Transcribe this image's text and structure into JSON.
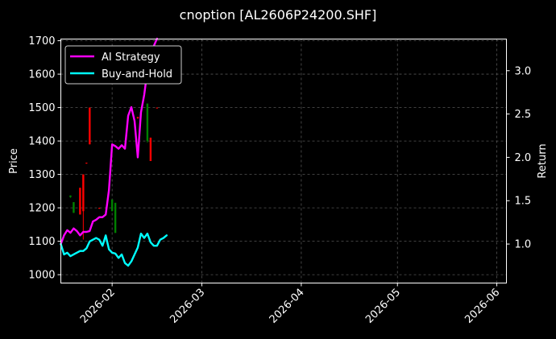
{
  "chart_data": {
    "type": "line",
    "title": "cnoption [AL2606P24200.SHF]",
    "ylabel": "Price",
    "y2label": "Return",
    "xlim": [
      "2026-01-16",
      "2026-06-04"
    ],
    "ylim": [
      975,
      1705
    ],
    "y2lim": [
      0.55,
      3.365
    ],
    "grid": true,
    "legend_position": "top-left",
    "xticks": [
      {
        "date": "2026-02-01",
        "label": "2026-02"
      },
      {
        "date": "2026-03-01",
        "label": "2026-03"
      },
      {
        "date": "2026-04-01",
        "label": "2026-04"
      },
      {
        "date": "2026-05-01",
        "label": "2026-05"
      },
      {
        "date": "2026-06-01",
        "label": "2026-06"
      }
    ],
    "yticks": [
      1000,
      1100,
      1200,
      1300,
      1400,
      1500,
      1600,
      1700
    ],
    "y2ticks": [
      1.0,
      1.5,
      2.0,
      2.5,
      3.0
    ],
    "candles": [
      {
        "date": "2026-01-19",
        "open": 1237,
        "close": 1232,
        "high": 1237,
        "low": 1230,
        "color": "#008000"
      },
      {
        "date": "2026-01-20",
        "open": 1217,
        "close": 1185,
        "high": 1217,
        "low": 1185,
        "color": "#008000"
      },
      {
        "date": "2026-01-22",
        "open": 1180,
        "close": 1260,
        "high": 1260,
        "low": 1180,
        "color": "#ff0000"
      },
      {
        "date": "2026-01-23",
        "open": 1190,
        "close": 1300,
        "high": 1300,
        "low": 1105,
        "color": "#ff0000"
      },
      {
        "date": "2026-01-24",
        "open": 1335,
        "close": 1333,
        "high": 1335,
        "low": 1332,
        "color": "#ff0000"
      },
      {
        "date": "2026-01-25",
        "open": 1390,
        "close": 1500,
        "high": 1500,
        "low": 1390,
        "color": "#ff0000"
      },
      {
        "date": "2026-01-28",
        "open": 1200,
        "close": 1198,
        "high": 1200,
        "low": 1197,
        "color": "#ff0000"
      },
      {
        "date": "2026-02-01",
        "open": 1225,
        "close": 1190,
        "high": 1225,
        "low": 1190,
        "color": "#008000"
      },
      {
        "date": "2026-02-02",
        "open": 1215,
        "close": 1125,
        "high": 1215,
        "low": 1125,
        "color": "#008000"
      },
      {
        "date": "2026-02-09",
        "open": 1472,
        "close": 1468,
        "high": 1472,
        "low": 1466,
        "color": "#ff0000"
      },
      {
        "date": "2026-02-12",
        "open": 1512,
        "close": 1400,
        "high": 1512,
        "low": 1395,
        "color": "#008000"
      },
      {
        "date": "2026-02-13",
        "open": 1340,
        "close": 1410,
        "high": 1410,
        "low": 1340,
        "color": "#ff0000"
      },
      {
        "date": "2026-02-15",
        "open": 1500,
        "close": 1498,
        "high": 1500,
        "low": 1497,
        "color": "#ff0000"
      }
    ],
    "series": [
      {
        "name": "AI Strategy",
        "color": "#ff00ff",
        "axis": "right",
        "points": [
          [
            "2026-01-16",
            1.0
          ],
          [
            "2026-01-17",
            1.1
          ],
          [
            "2026-01-18",
            1.16
          ],
          [
            "2026-01-19",
            1.13
          ],
          [
            "2026-01-20",
            1.18
          ],
          [
            "2026-01-21",
            1.15
          ],
          [
            "2026-01-22",
            1.1
          ],
          [
            "2026-01-23",
            1.14
          ],
          [
            "2026-01-24",
            1.14
          ],
          [
            "2026-01-25",
            1.15
          ],
          [
            "2026-01-26",
            1.26
          ],
          [
            "2026-01-27",
            1.28
          ],
          [
            "2026-01-28",
            1.31
          ],
          [
            "2026-01-29",
            1.31
          ],
          [
            "2026-01-30",
            1.34
          ],
          [
            "2026-01-31",
            1.62
          ],
          [
            "2026-02-01",
            2.15
          ],
          [
            "2026-02-02",
            2.13
          ],
          [
            "2026-02-03",
            2.1
          ],
          [
            "2026-02-04",
            2.14
          ],
          [
            "2026-02-05",
            2.1
          ],
          [
            "2026-02-06",
            2.48
          ],
          [
            "2026-02-07",
            2.58
          ],
          [
            "2026-02-08",
            2.42
          ],
          [
            "2026-02-09",
            2.0
          ],
          [
            "2026-02-10",
            2.52
          ],
          [
            "2026-02-11",
            2.72
          ],
          [
            "2026-02-12",
            3.0
          ],
          [
            "2026-02-13",
            3.2
          ],
          [
            "2026-02-15",
            3.37
          ]
        ]
      },
      {
        "name": "Buy-and-Hold",
        "color": "#00ffff",
        "axis": "right",
        "points": [
          [
            "2026-01-16",
            1.0
          ],
          [
            "2026-01-17",
            0.88
          ],
          [
            "2026-01-18",
            0.9
          ],
          [
            "2026-01-19",
            0.86
          ],
          [
            "2026-01-20",
            0.88
          ],
          [
            "2026-01-21",
            0.9
          ],
          [
            "2026-01-22",
            0.92
          ],
          [
            "2026-01-23",
            0.92
          ],
          [
            "2026-01-24",
            0.95
          ],
          [
            "2026-01-25",
            1.03
          ],
          [
            "2026-01-26",
            1.05
          ],
          [
            "2026-01-27",
            1.07
          ],
          [
            "2026-01-28",
            1.05
          ],
          [
            "2026-01-29",
            0.98
          ],
          [
            "2026-01-30",
            1.1
          ],
          [
            "2026-01-31",
            0.94
          ],
          [
            "2026-02-01",
            0.9
          ],
          [
            "2026-02-02",
            0.89
          ],
          [
            "2026-02-03",
            0.84
          ],
          [
            "2026-02-04",
            0.88
          ],
          [
            "2026-02-05",
            0.78
          ],
          [
            "2026-02-06",
            0.75
          ],
          [
            "2026-02-07",
            0.8
          ],
          [
            "2026-02-08",
            0.88
          ],
          [
            "2026-02-09",
            0.96
          ],
          [
            "2026-02-10",
            1.12
          ],
          [
            "2026-02-11",
            1.07
          ],
          [
            "2026-02-12",
            1.12
          ],
          [
            "2026-02-13",
            1.02
          ],
          [
            "2026-02-14",
            0.98
          ],
          [
            "2026-02-15",
            0.98
          ],
          [
            "2026-02-16",
            1.05
          ],
          [
            "2026-02-17",
            1.07
          ],
          [
            "2026-02-18",
            1.1
          ]
        ]
      }
    ]
  }
}
